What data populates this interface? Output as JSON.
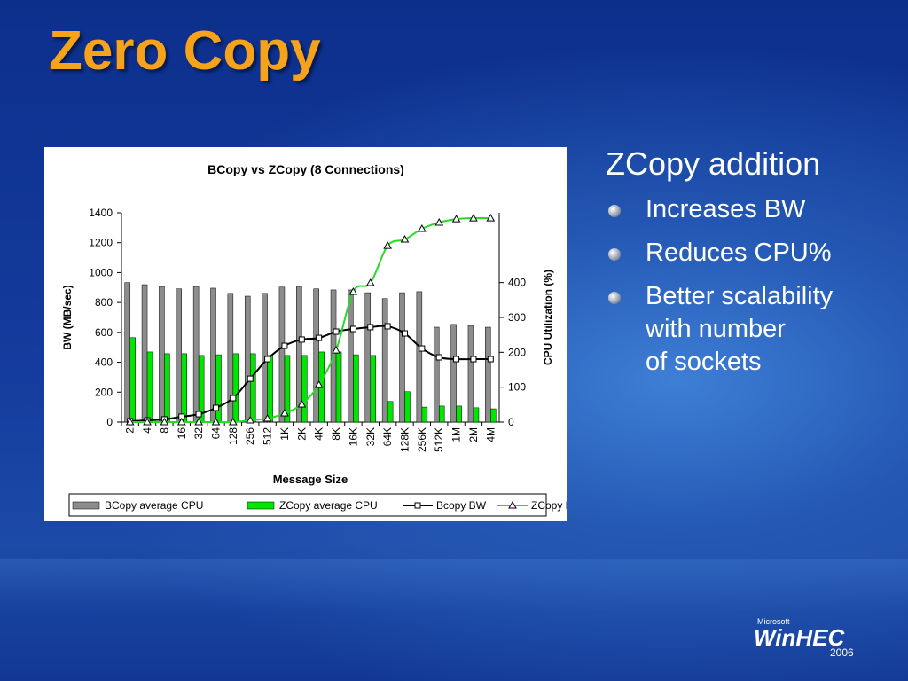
{
  "slide_title": "Zero Copy",
  "heading": "ZCopy addition",
  "bullets": [
    [
      "Increases BW"
    ],
    [
      "Reduces CPU%"
    ],
    [
      "Better scalability",
      "with number",
      "of sockets"
    ]
  ],
  "logo": {
    "brand": "Microsoft",
    "name": "WinHEC",
    "year": "2006"
  },
  "chart_data": {
    "type": "combo",
    "title": "BCopy vs ZCopy (8 Connections)",
    "x_label": "Message Size",
    "y_label": "BW (MB/sec)",
    "y2_label": "CPU Utilization (%)",
    "categories": [
      "2",
      "4",
      "8",
      "16",
      "32",
      "64",
      "128",
      "256",
      "512",
      "1K",
      "2K",
      "4K",
      "8K",
      "16K",
      "32K",
      "64K",
      "128K",
      "256K",
      "512K",
      "1M",
      "2M",
      "4M"
    ],
    "ylim": [
      0,
      1400
    ],
    "yticks": [
      0,
      200,
      400,
      600,
      800,
      1000,
      1200,
      1400
    ],
    "y2lim": [
      0,
      600
    ],
    "y2ticks": [
      0,
      100,
      200,
      300,
      400
    ],
    "legend": "bottom",
    "series": [
      {
        "name": "BCopy average CPU",
        "type": "bar",
        "axis": "y2",
        "color": "#8c8c8c",
        "values": [
          400,
          394,
          389,
          382,
          389,
          384,
          369,
          361,
          369,
          387,
          389,
          382,
          379,
          379,
          371,
          354,
          371,
          374,
          272,
          280,
          277,
          272
        ]
      },
      {
        "name": "ZCopy average CPU",
        "type": "bar",
        "axis": "y2",
        "color": "#00e600",
        "values": [
          242,
          201,
          196,
          196,
          191,
          193,
          196,
          196,
          191,
          191,
          191,
          201,
          201,
          193,
          191,
          59,
          87,
          43,
          46,
          46,
          41,
          38
        ]
      },
      {
        "name": "Bcopy BW",
        "type": "line",
        "marker": "square",
        "color": "#000000",
        "values": [
          6,
          12,
          18,
          36,
          53,
          95,
          160,
          290,
          421,
          510,
          552,
          563,
          605,
          623,
          635,
          641,
          593,
          492,
          433,
          421,
          421,
          421
        ]
      },
      {
        "name": "ZCopy BW",
        "type": "line",
        "marker": "triangle",
        "color": "#22dd22",
        "values": [
          0,
          0,
          0,
          0,
          0,
          0,
          0,
          12,
          24,
          59,
          119,
          249,
          480,
          872,
          931,
          1180,
          1222,
          1293,
          1335,
          1358,
          1364,
          1364
        ]
      }
    ]
  }
}
